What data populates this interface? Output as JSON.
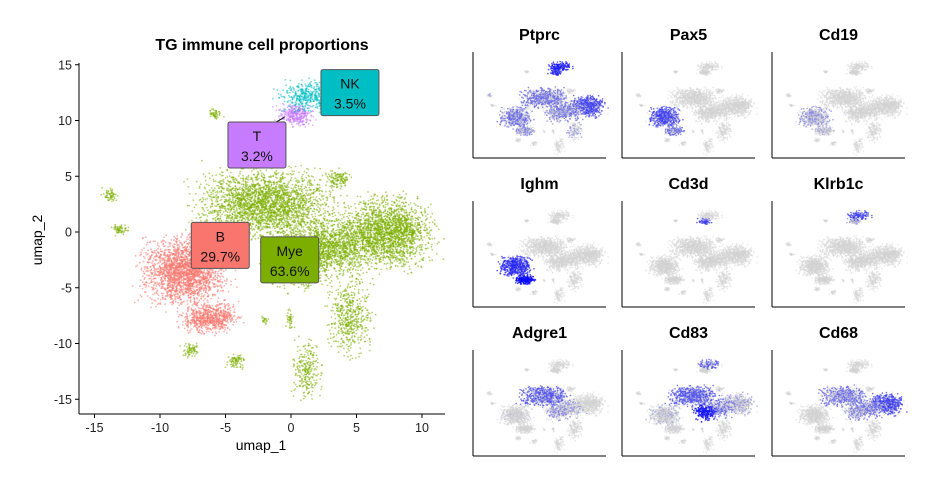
{
  "chart_data": [
    {
      "type": "scatter",
      "title": "TG immune cell proportions",
      "xlabel": "umap_1",
      "ylabel": "umap_2",
      "xlim": [
        -16.3,
        11.8
      ],
      "ylim": [
        -16.3,
        15.1
      ],
      "xticks": [
        -15,
        -10,
        -5,
        0,
        5,
        10
      ],
      "yticks": [
        15,
        10,
        5,
        0,
        -5,
        -10,
        -15
      ],
      "grid": false,
      "clusters": [
        {
          "name": "NK",
          "percent": "3.5%",
          "color": "#00BFC4"
        },
        {
          "name": "T",
          "percent": "3.2%",
          "color": "#C77CFF"
        },
        {
          "name": "B",
          "percent": "29.7%",
          "color": "#F8766D"
        },
        {
          "name": "Mye",
          "percent": "63.6%",
          "color": "#7CAE00"
        }
      ]
    },
    {
      "type": "scatter",
      "subtype": "feature-plot-grid",
      "low_color": "#d3d3d3",
      "high_color": "#0000ff",
      "panels": [
        {
          "gene": "Ptprc"
        },
        {
          "gene": "Pax5"
        },
        {
          "gene": "Cd19"
        },
        {
          "gene": "Ighm"
        },
        {
          "gene": "Cd3d"
        },
        {
          "gene": "Klrb1c"
        },
        {
          "gene": "Adgre1"
        },
        {
          "gene": "Cd83"
        },
        {
          "gene": "Cd68"
        }
      ]
    }
  ]
}
